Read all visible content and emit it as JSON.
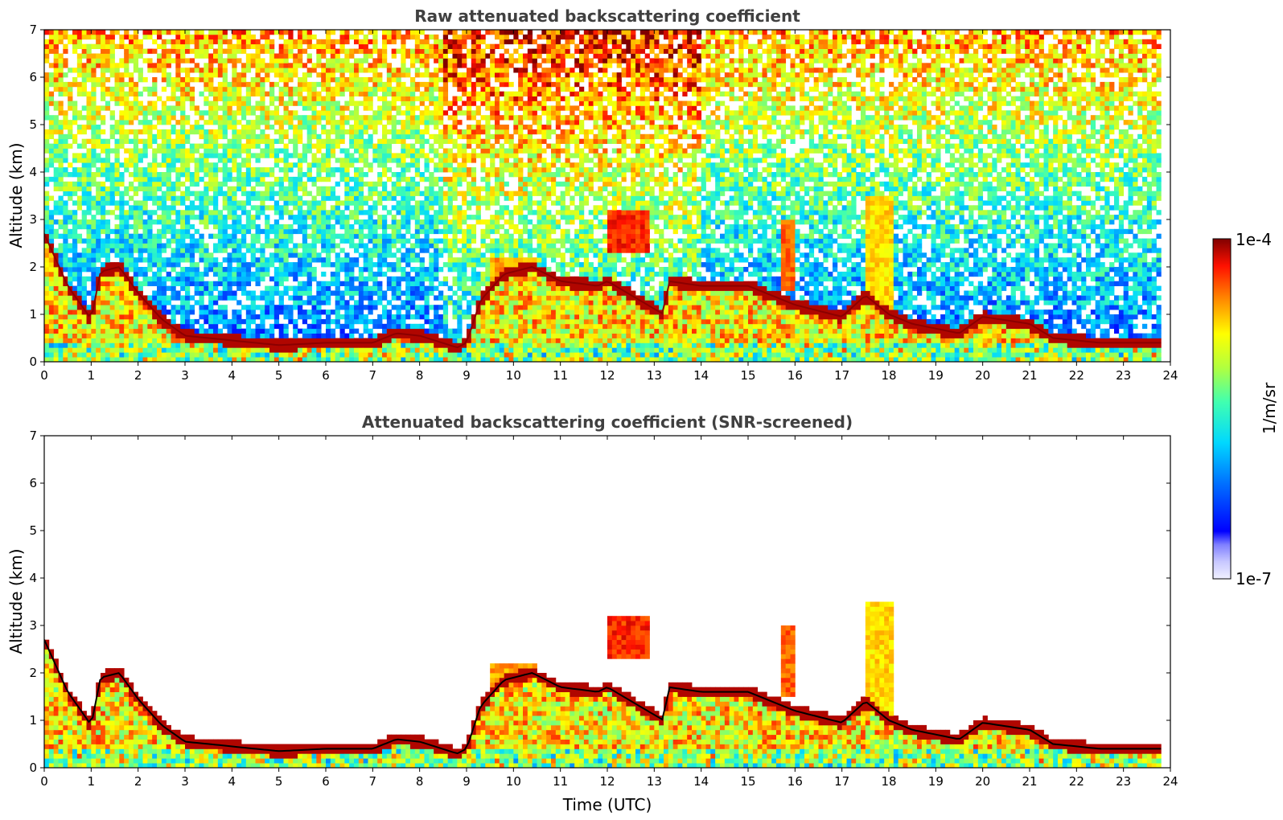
{
  "chart_data": [
    {
      "type": "heatmap",
      "title": "Raw attenuated backscattering coefficient",
      "xlabel": "",
      "ylabel": "Altitude (km)",
      "xlim": [
        0,
        24
      ],
      "ylim": [
        0,
        7
      ],
      "xticks": [
        "0",
        "1",
        "2",
        "3",
        "4",
        "5",
        "6",
        "7",
        "8",
        "9",
        "10",
        "11",
        "12",
        "13",
        "14",
        "15",
        "16",
        "17",
        "18",
        "19",
        "20",
        "21",
        "22",
        "23",
        "24"
      ],
      "yticks": [
        "0",
        "1",
        "2",
        "3",
        "4",
        "5",
        "6",
        "7"
      ],
      "screened": false,
      "data_end_hour": 23.8,
      "boundary_layer_top_km": [
        [
          0,
          2.7
        ],
        [
          0.5,
          1.6
        ],
        [
          1,
          0.9
        ],
        [
          1.2,
          1.9
        ],
        [
          1.6,
          2.0
        ],
        [
          2,
          1.45
        ],
        [
          2.5,
          0.9
        ],
        [
          3,
          0.55
        ],
        [
          4,
          0.45
        ],
        [
          5,
          0.35
        ],
        [
          6,
          0.4
        ],
        [
          7,
          0.4
        ],
        [
          7.5,
          0.6
        ],
        [
          8,
          0.55
        ],
        [
          8.8,
          0.3
        ],
        [
          9,
          0.4
        ],
        [
          9.3,
          1.3
        ],
        [
          9.8,
          1.85
        ],
        [
          10.4,
          2.0
        ],
        [
          11,
          1.7
        ],
        [
          11.8,
          1.6
        ],
        [
          12,
          1.7
        ],
        [
          13.2,
          1.0
        ],
        [
          13.3,
          1.7
        ],
        [
          14,
          1.6
        ],
        [
          15,
          1.6
        ],
        [
          15.5,
          1.4
        ],
        [
          16,
          1.2
        ],
        [
          17,
          0.95
        ],
        [
          17.5,
          1.4
        ],
        [
          18,
          1.0
        ],
        [
          18.5,
          0.8
        ],
        [
          19.5,
          0.6
        ],
        [
          20,
          0.95
        ],
        [
          21,
          0.8
        ],
        [
          21.5,
          0.5
        ],
        [
          22.5,
          0.4
        ],
        [
          23.8,
          0.4
        ]
      ],
      "cloud_patches": [
        {
          "x": [
            12.0,
            12.9
          ],
          "y": [
            2.3,
            3.2
          ],
          "level": 0.9
        },
        {
          "x": [
            9.5,
            10.5
          ],
          "y": [
            1.3,
            2.2
          ],
          "level": 0.8
        },
        {
          "x": [
            15.7,
            16.0
          ],
          "y": [
            1.5,
            3.0
          ],
          "level": 0.85
        },
        {
          "x": [
            17.5,
            18.1
          ],
          "y": [
            0.5,
            3.5
          ],
          "level": 0.75
        }
      ]
    },
    {
      "type": "heatmap",
      "title": "Attenuated backscattering coefficient (SNR-screened)",
      "xlabel": "Time (UTC)",
      "ylabel": "Altitude (km)",
      "xlim": [
        0,
        24
      ],
      "ylim": [
        0,
        7
      ],
      "xticks": [
        "0",
        "1",
        "2",
        "3",
        "4",
        "5",
        "6",
        "7",
        "8",
        "9",
        "10",
        "11",
        "12",
        "13",
        "14",
        "15",
        "16",
        "17",
        "18",
        "19",
        "20",
        "21",
        "22",
        "23",
        "24"
      ],
      "yticks": [
        "0",
        "1",
        "2",
        "3",
        "4",
        "5",
        "6",
        "7"
      ],
      "screened": true,
      "data_end_hour": 23.8
    }
  ],
  "colorbar": {
    "max_label": "1e-4",
    "min_label": "1e-7",
    "unit_label": "1/m/sr",
    "colormap": "jet",
    "scale": "log",
    "range": [
      1e-07,
      0.0001
    ]
  }
}
